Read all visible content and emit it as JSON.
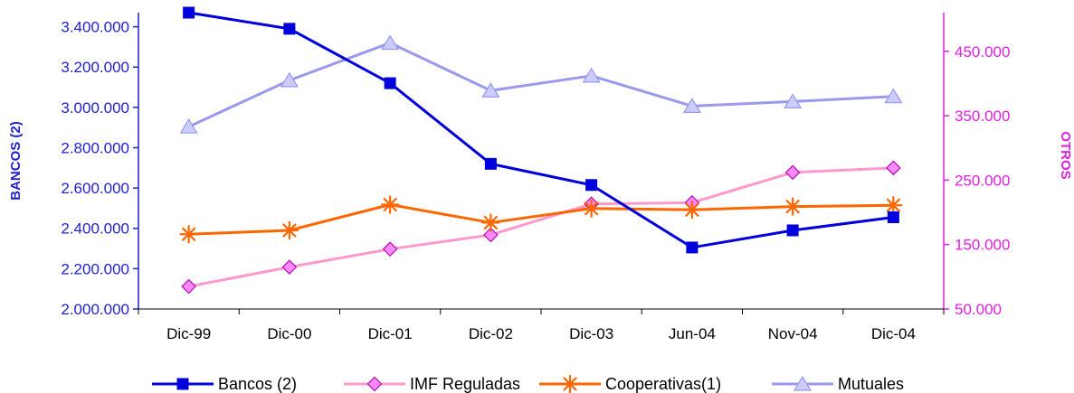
{
  "chart_data": {
    "type": "line",
    "categories": [
      "Dic-99",
      "Dic-00",
      "Dic-01",
      "Dic-02",
      "Dic-03",
      "Jun-04",
      "Nov-04",
      "Dic-04"
    ],
    "y_left": {
      "label": "BANCOS (2)",
      "ticks": [
        "2.000.000",
        "2.200.000",
        "2.400.000",
        "2.600.000",
        "2.800.000",
        "3.000.000",
        "3.200.000",
        "3.400.000"
      ],
      "ylim": [
        2000000,
        3470000
      ],
      "color": "#2222cc"
    },
    "y_right": {
      "label": "OTROS",
      "ticks": [
        "50.000",
        "150.000",
        "250.000",
        "350.000",
        "450.000"
      ],
      "ylim": [
        50000,
        510000
      ],
      "color": "#e020e0"
    },
    "grid": false,
    "legend_position": "bottom",
    "series": [
      {
        "name": "Bancos (2)",
        "axis": "left",
        "color": "#0000dd",
        "marker": "square",
        "values": [
          3470000,
          3390000,
          3120000,
          2720000,
          2615000,
          2305000,
          2390000,
          2455000
        ]
      },
      {
        "name": "IMF Reguladas",
        "axis": "right",
        "color": "#ff99cc",
        "marker": "diamond",
        "values": [
          85000,
          115000,
          143000,
          165000,
          213000,
          215000,
          262000,
          269000
        ]
      },
      {
        "name": "Cooperativas(1)",
        "axis": "right",
        "color": "#ff6600",
        "marker": "star",
        "values": [
          166000,
          172000,
          212000,
          184000,
          206000,
          204000,
          209000,
          211000
        ]
      },
      {
        "name": "Mutuales",
        "axis": "right",
        "color": "#9999ee",
        "marker": "triangle",
        "values": [
          333000,
          405000,
          463000,
          389000,
          412000,
          365000,
          372000,
          380000
        ]
      }
    ]
  }
}
